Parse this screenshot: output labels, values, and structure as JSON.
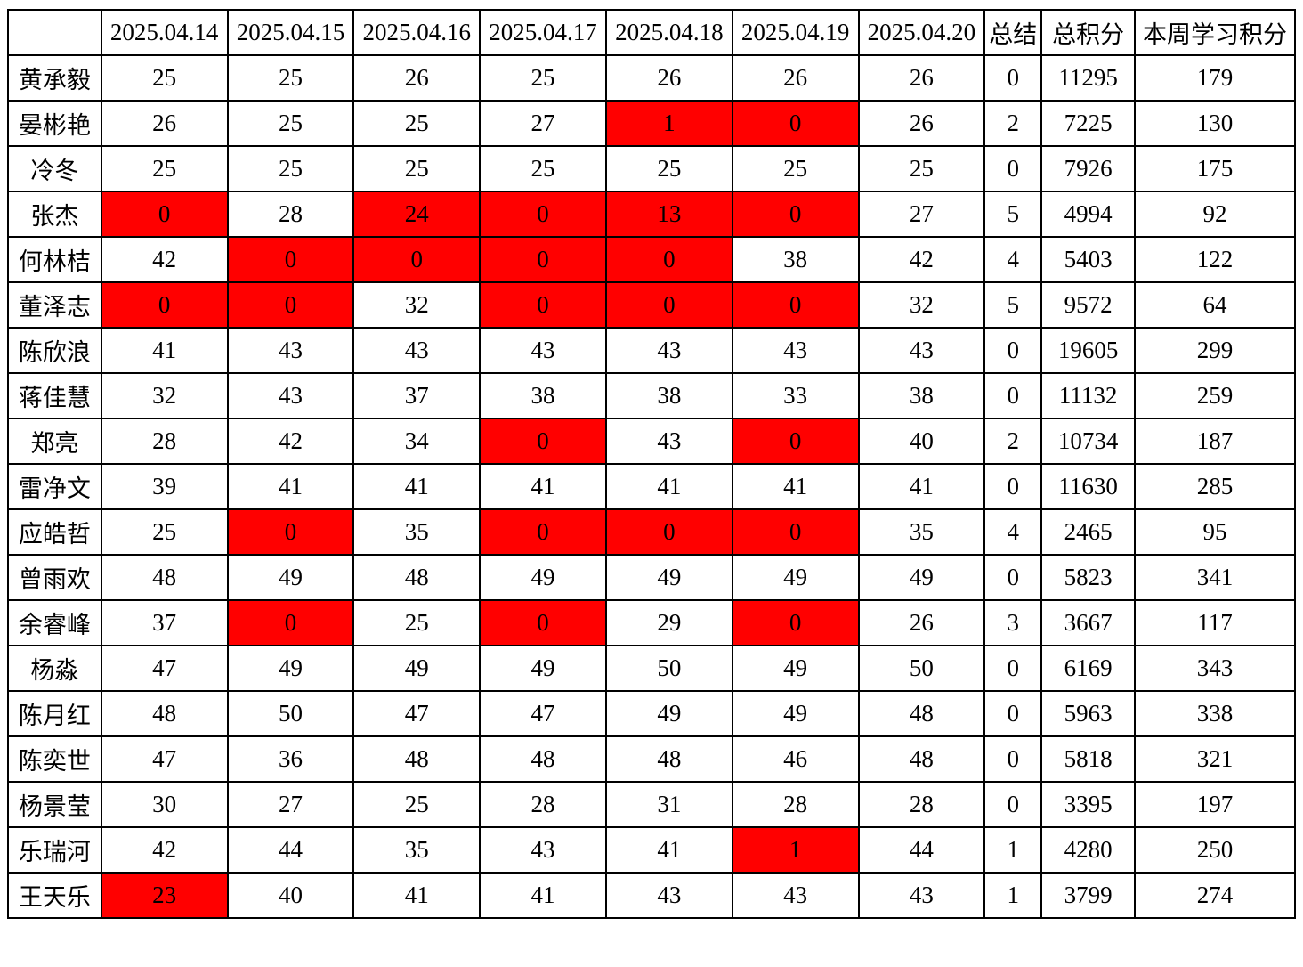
{
  "colors": {
    "highlight_cell_bg": "#ff0000",
    "highlight_cell_text": "#ffff00",
    "accent_text": "#ff0000",
    "grid_border": "#000000",
    "default_text": "#000000"
  },
  "table": {
    "columns": [
      {
        "label": "",
        "red": false
      },
      {
        "label": "2025.04.14",
        "red": false
      },
      {
        "label": "2025.04.15",
        "red": false
      },
      {
        "label": "2025.04.16",
        "red": false
      },
      {
        "label": "2025.04.17",
        "red": false
      },
      {
        "label": "2025.04.18",
        "red": false
      },
      {
        "label": "2025.04.19",
        "red": false
      },
      {
        "label": "2025.04.20",
        "red": false
      },
      {
        "label": "总结",
        "red": true
      },
      {
        "label": "总积分",
        "red": true
      },
      {
        "label": "本周学习积分",
        "red": true
      }
    ],
    "rows": [
      {
        "name": "黄承毅",
        "days": [
          {
            "v": "25",
            "hl": false
          },
          {
            "v": "25",
            "hl": false
          },
          {
            "v": "26",
            "hl": false
          },
          {
            "v": "25",
            "hl": false
          },
          {
            "v": "26",
            "hl": false
          },
          {
            "v": "26",
            "hl": false
          },
          {
            "v": "26",
            "hl": false
          }
        ],
        "summary": "0",
        "total": "11295",
        "week": "179"
      },
      {
        "name": "晏彬艳",
        "days": [
          {
            "v": "26",
            "hl": false
          },
          {
            "v": "25",
            "hl": false
          },
          {
            "v": "25",
            "hl": false
          },
          {
            "v": "27",
            "hl": false
          },
          {
            "v": "1",
            "hl": true
          },
          {
            "v": "0",
            "hl": true
          },
          {
            "v": "26",
            "hl": false
          }
        ],
        "summary": "2",
        "total": "7225",
        "week": "130"
      },
      {
        "name": "冷冬",
        "days": [
          {
            "v": "25",
            "hl": false
          },
          {
            "v": "25",
            "hl": false
          },
          {
            "v": "25",
            "hl": false
          },
          {
            "v": "25",
            "hl": false
          },
          {
            "v": "25",
            "hl": false
          },
          {
            "v": "25",
            "hl": false
          },
          {
            "v": "25",
            "hl": false
          }
        ],
        "summary": "0",
        "total": "7926",
        "week": "175"
      },
      {
        "name": "张杰",
        "days": [
          {
            "v": "0",
            "hl": true
          },
          {
            "v": "28",
            "hl": false
          },
          {
            "v": "24",
            "hl": true
          },
          {
            "v": "0",
            "hl": true
          },
          {
            "v": "13",
            "hl": true
          },
          {
            "v": "0",
            "hl": true
          },
          {
            "v": "27",
            "hl": false
          }
        ],
        "summary": "5",
        "total": "4994",
        "week": "92"
      },
      {
        "name": "何林桔",
        "days": [
          {
            "v": "42",
            "hl": false
          },
          {
            "v": "0",
            "hl": true
          },
          {
            "v": "0",
            "hl": true
          },
          {
            "v": "0",
            "hl": true
          },
          {
            "v": "0",
            "hl": true
          },
          {
            "v": "38",
            "hl": false
          },
          {
            "v": "42",
            "hl": false
          }
        ],
        "summary": "4",
        "total": "5403",
        "week": "122"
      },
      {
        "name": "董泽志",
        "days": [
          {
            "v": "0",
            "hl": true
          },
          {
            "v": "0",
            "hl": true
          },
          {
            "v": "32",
            "hl": false
          },
          {
            "v": "0",
            "hl": true
          },
          {
            "v": "0",
            "hl": true
          },
          {
            "v": "0",
            "hl": true
          },
          {
            "v": "32",
            "hl": false
          }
        ],
        "summary": "5",
        "total": "9572",
        "week": "64"
      },
      {
        "name": "陈欣浪",
        "days": [
          {
            "v": "41",
            "hl": false
          },
          {
            "v": "43",
            "hl": false
          },
          {
            "v": "43",
            "hl": false
          },
          {
            "v": "43",
            "hl": false
          },
          {
            "v": "43",
            "hl": false
          },
          {
            "v": "43",
            "hl": false
          },
          {
            "v": "43",
            "hl": false
          }
        ],
        "summary": "0",
        "total": "19605",
        "week": "299"
      },
      {
        "name": "蒋佳慧",
        "days": [
          {
            "v": "32",
            "hl": false
          },
          {
            "v": "43",
            "hl": false
          },
          {
            "v": "37",
            "hl": false
          },
          {
            "v": "38",
            "hl": false
          },
          {
            "v": "38",
            "hl": false
          },
          {
            "v": "33",
            "hl": false
          },
          {
            "v": "38",
            "hl": false
          }
        ],
        "summary": "0",
        "total": "11132",
        "week": "259"
      },
      {
        "name": "郑亮",
        "days": [
          {
            "v": "28",
            "hl": false
          },
          {
            "v": "42",
            "hl": false
          },
          {
            "v": "34",
            "hl": false
          },
          {
            "v": "0",
            "hl": true
          },
          {
            "v": "43",
            "hl": false
          },
          {
            "v": "0",
            "hl": true
          },
          {
            "v": "40",
            "hl": false
          }
        ],
        "summary": "2",
        "total": "10734",
        "week": "187"
      },
      {
        "name": "雷净文",
        "days": [
          {
            "v": "39",
            "hl": false
          },
          {
            "v": "41",
            "hl": false
          },
          {
            "v": "41",
            "hl": false
          },
          {
            "v": "41",
            "hl": false
          },
          {
            "v": "41",
            "hl": false
          },
          {
            "v": "41",
            "hl": false
          },
          {
            "v": "41",
            "hl": false
          }
        ],
        "summary": "0",
        "total": "11630",
        "week": "285"
      },
      {
        "name": "应皓哲",
        "days": [
          {
            "v": "25",
            "hl": false
          },
          {
            "v": "0",
            "hl": true
          },
          {
            "v": "35",
            "hl": false
          },
          {
            "v": "0",
            "hl": true
          },
          {
            "v": "0",
            "hl": true
          },
          {
            "v": "0",
            "hl": true
          },
          {
            "v": "35",
            "hl": false
          }
        ],
        "summary": "4",
        "total": "2465",
        "week": "95"
      },
      {
        "name": "曾雨欢",
        "days": [
          {
            "v": "48",
            "hl": false
          },
          {
            "v": "49",
            "hl": false
          },
          {
            "v": "48",
            "hl": false
          },
          {
            "v": "49",
            "hl": false
          },
          {
            "v": "49",
            "hl": false
          },
          {
            "v": "49",
            "hl": false
          },
          {
            "v": "49",
            "hl": false
          }
        ],
        "summary": "0",
        "total": "5823",
        "week": "341"
      },
      {
        "name": "余睿峰",
        "days": [
          {
            "v": "37",
            "hl": false
          },
          {
            "v": "0",
            "hl": true
          },
          {
            "v": "25",
            "hl": false
          },
          {
            "v": "0",
            "hl": true
          },
          {
            "v": "29",
            "hl": false
          },
          {
            "v": "0",
            "hl": true
          },
          {
            "v": "26",
            "hl": false
          }
        ],
        "summary": "3",
        "total": "3667",
        "week": "117"
      },
      {
        "name": "杨淼",
        "days": [
          {
            "v": "47",
            "hl": false
          },
          {
            "v": "49",
            "hl": false
          },
          {
            "v": "49",
            "hl": false
          },
          {
            "v": "49",
            "hl": false
          },
          {
            "v": "50",
            "hl": false
          },
          {
            "v": "49",
            "hl": false
          },
          {
            "v": "50",
            "hl": false
          }
        ],
        "summary": "0",
        "total": "6169",
        "week": "343"
      },
      {
        "name": "陈月红",
        "days": [
          {
            "v": "48",
            "hl": false
          },
          {
            "v": "50",
            "hl": false
          },
          {
            "v": "47",
            "hl": false
          },
          {
            "v": "47",
            "hl": false
          },
          {
            "v": "49",
            "hl": false
          },
          {
            "v": "49",
            "hl": false
          },
          {
            "v": "48",
            "hl": false
          }
        ],
        "summary": "0",
        "total": "5963",
        "week": "338"
      },
      {
        "name": "陈奕世",
        "days": [
          {
            "v": "47",
            "hl": false
          },
          {
            "v": "36",
            "hl": false
          },
          {
            "v": "48",
            "hl": false
          },
          {
            "v": "48",
            "hl": false
          },
          {
            "v": "48",
            "hl": false
          },
          {
            "v": "46",
            "hl": false
          },
          {
            "v": "48",
            "hl": false
          }
        ],
        "summary": "0",
        "total": "5818",
        "week": "321"
      },
      {
        "name": "杨景莹",
        "days": [
          {
            "v": "30",
            "hl": false
          },
          {
            "v": "27",
            "hl": false
          },
          {
            "v": "25",
            "hl": false
          },
          {
            "v": "28",
            "hl": false
          },
          {
            "v": "31",
            "hl": false
          },
          {
            "v": "28",
            "hl": false
          },
          {
            "v": "28",
            "hl": false
          }
        ],
        "summary": "0",
        "total": "3395",
        "week": "197"
      },
      {
        "name": "乐瑞河",
        "days": [
          {
            "v": "42",
            "hl": false
          },
          {
            "v": "44",
            "hl": false
          },
          {
            "v": "35",
            "hl": false
          },
          {
            "v": "43",
            "hl": false
          },
          {
            "v": "41",
            "hl": false
          },
          {
            "v": "1",
            "hl": true
          },
          {
            "v": "44",
            "hl": false
          }
        ],
        "summary": "1",
        "total": "4280",
        "week": "250"
      },
      {
        "name": "王天乐",
        "days": [
          {
            "v": "23",
            "hl": true
          },
          {
            "v": "40",
            "hl": false
          },
          {
            "v": "41",
            "hl": false
          },
          {
            "v": "41",
            "hl": false
          },
          {
            "v": "43",
            "hl": false
          },
          {
            "v": "43",
            "hl": false
          },
          {
            "v": "43",
            "hl": false
          }
        ],
        "summary": "1",
        "total": "3799",
        "week": "274"
      }
    ]
  }
}
